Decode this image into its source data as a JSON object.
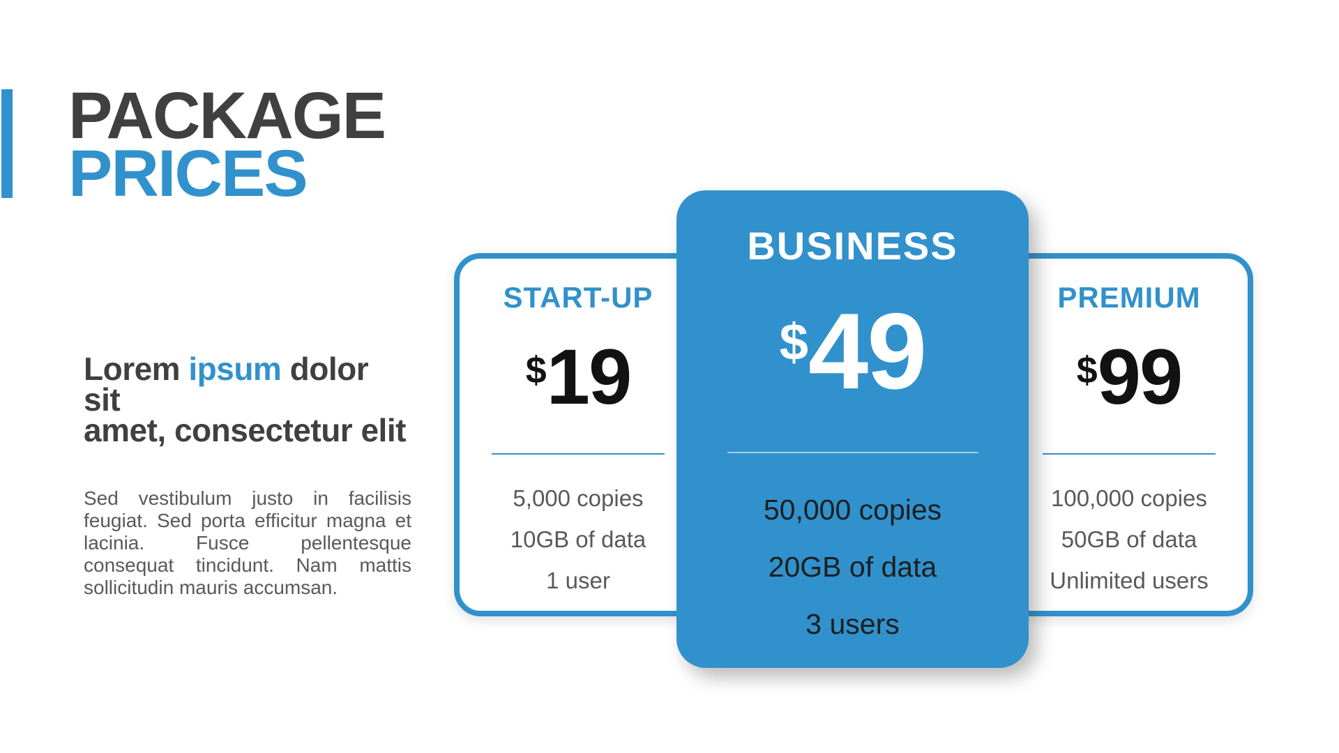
{
  "colors": {
    "accent": "#3191cc",
    "title_dark": "#404041",
    "body_text": "#58595b",
    "price_black": "#121212",
    "featured_feature_text": "#1d1e20"
  },
  "header": {
    "title_line1": "PACKAGE",
    "title_line2": "PRICES"
  },
  "intro": {
    "heading_pre": "Lorem",
    "heading_highlight": "ipsum",
    "heading_post": "dolor sit",
    "heading_line2": "amet, consectetur elit",
    "body": "Sed vestibulum justo in facilisis feugiat. Sed porta efficitur magna et lacinia. Fusce pellentesque consequat tincidunt. Nam mattis sollicitudin mauris accumsan."
  },
  "plans": [
    {
      "name": "START-UP",
      "currency": "$",
      "price": "19",
      "features": [
        "5,000 copies",
        "10GB of data",
        "1 user"
      ]
    },
    {
      "name": "BUSINESS",
      "currency": "$",
      "price": "49",
      "features": [
        "50,000 copies",
        "20GB of data",
        "3 users"
      ]
    },
    {
      "name": "PREMIUM",
      "currency": "$",
      "price": "99",
      "features": [
        "100,000 copies",
        "50GB of data",
        "Unlimited users"
      ]
    }
  ]
}
